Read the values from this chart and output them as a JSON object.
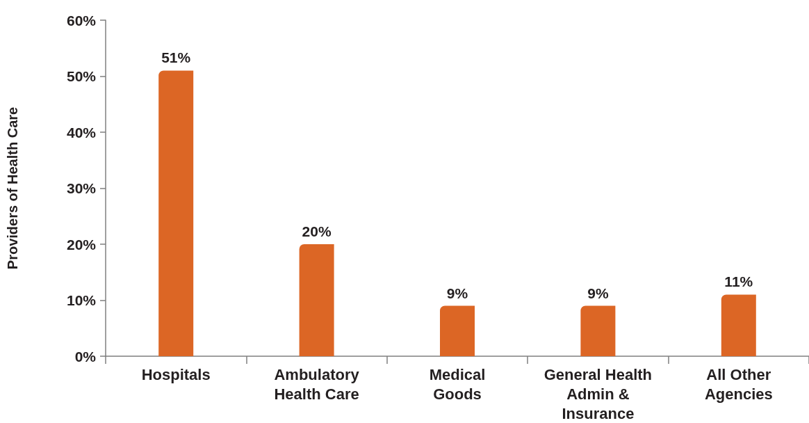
{
  "chart_data": {
    "type": "bar",
    "ylabel": "Providers of Health Care",
    "categories": [
      "Hospitals",
      "Ambulatory\nHealth Care",
      "Medical\nGoods",
      "General Health\nAdmin &\nInsurance",
      "All Other\nAgencies"
    ],
    "values": [
      51,
      20,
      9,
      9,
      11
    ],
    "value_labels": [
      "51%",
      "20%",
      "9%",
      "9%",
      "11%"
    ],
    "color": "#dc6625",
    "ylim": [
      0,
      60
    ],
    "yticks": [
      {
        "value": 0,
        "label": "0%"
      },
      {
        "value": 10,
        "label": "10%"
      },
      {
        "value": 20,
        "label": "20%"
      },
      {
        "value": 30,
        "label": "30%"
      },
      {
        "value": 40,
        "label": "40%"
      },
      {
        "value": 50,
        "label": "50%"
      },
      {
        "value": 60,
        "label": "60%"
      }
    ]
  }
}
